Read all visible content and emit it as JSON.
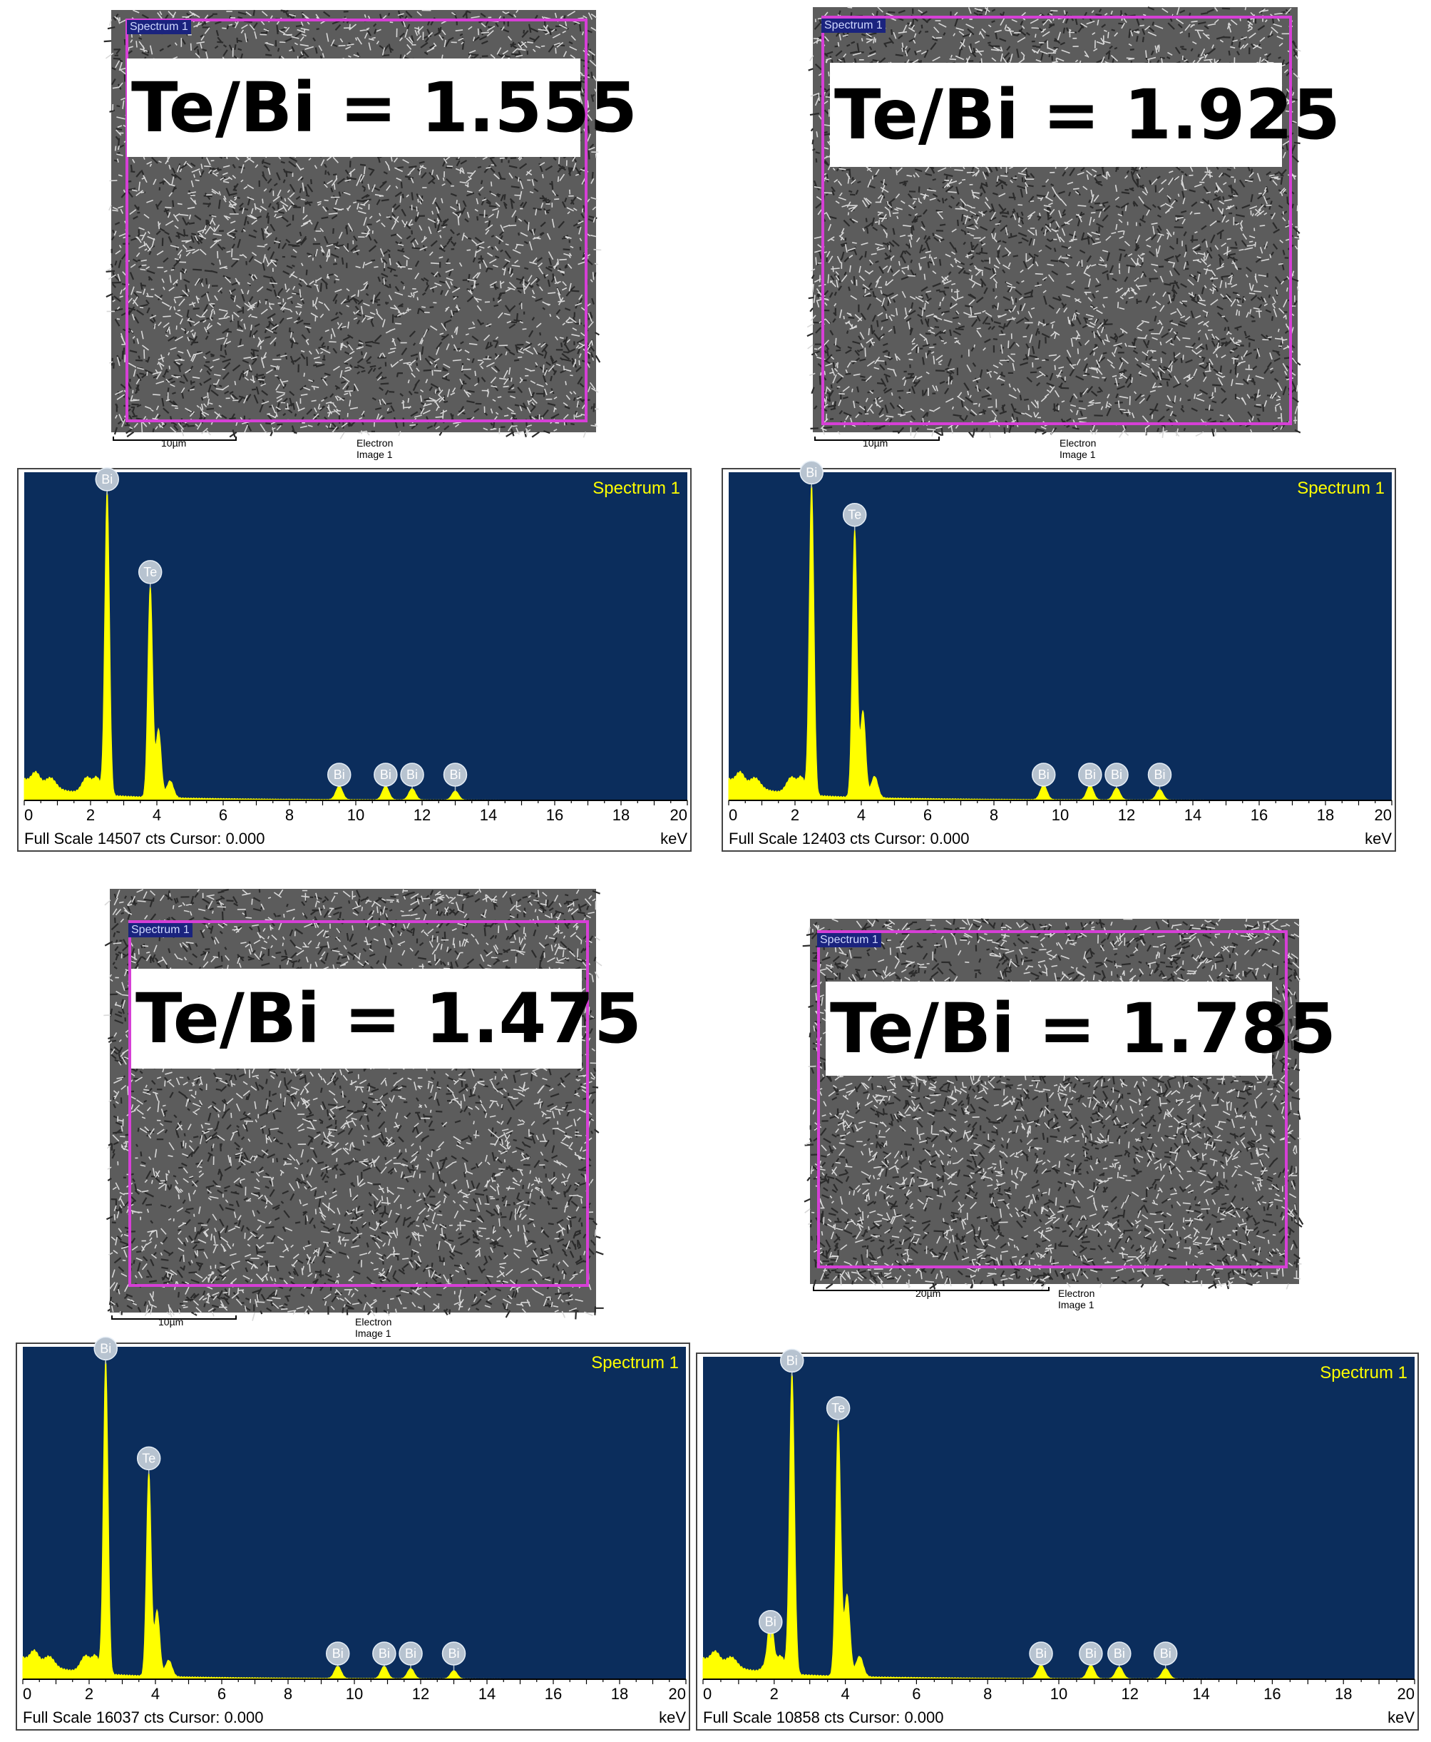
{
  "panels": [
    {
      "ratio_label": "Te/Bi = 1.555",
      "spectrum_tag": "Spectrum 1",
      "scale_label": "10µm",
      "image_label": "Electron Image 1",
      "footer_left": "Full Scale 14507 cts Cursor: 0.000",
      "footer_right": "keV"
    },
    {
      "ratio_label": "Te/Bi = 1.925",
      "spectrum_tag": "Spectrum 1",
      "scale_label": "10µm",
      "image_label": "Electron Image 1",
      "footer_left": "Full Scale 12403 cts Cursor: 0.000",
      "footer_right": "keV"
    },
    {
      "ratio_label": "Te/Bi = 1.475",
      "spectrum_tag": "Spectrum 1",
      "scale_label": "10µm",
      "image_label": "Electron Image 1",
      "footer_left": "Full Scale 16037 cts Cursor: 0.000",
      "footer_right": "keV"
    },
    {
      "ratio_label": "Te/Bi = 1.785",
      "spectrum_tag": "Spectrum 1",
      "scale_label": "20µm",
      "image_label": "Electron Image 1",
      "footer_left": "Full Scale 10858 cts Cursor: 0.000",
      "footer_right": "keV"
    }
  ],
  "chart_data": [
    {
      "type": "line",
      "title": "Spectrum 1",
      "xlabel": "keV",
      "xlim": [
        0,
        20
      ],
      "ylim": [
        0,
        14507
      ],
      "ticks": [
        0,
        2,
        4,
        6,
        8,
        10,
        12,
        14,
        16,
        18,
        20
      ],
      "peaks": [
        {
          "element": "Bi",
          "x": 2.5,
          "y": 13500
        },
        {
          "element": "Te",
          "x": 3.8,
          "y": 9400
        },
        {
          "element": "Bi",
          "x": 9.5,
          "y": 600
        },
        {
          "element": "Bi",
          "x": 10.9,
          "y": 600
        },
        {
          "element": "Bi",
          "x": 11.7,
          "y": 500
        },
        {
          "element": "Bi",
          "x": 13.0,
          "y": 400
        }
      ],
      "colors": {
        "background": "#0b2d5c",
        "trace": "#ffff00",
        "title": "#ffff00"
      }
    },
    {
      "type": "line",
      "title": "Spectrum 1",
      "xlabel": "keV",
      "xlim": [
        0,
        20
      ],
      "ylim": [
        0,
        12403
      ],
      "ticks": [
        0,
        2,
        4,
        6,
        8,
        10,
        12,
        14,
        16,
        18,
        20
      ],
      "peaks": [
        {
          "element": "Bi",
          "x": 2.5,
          "y": 11800
        },
        {
          "element": "Te",
          "x": 3.8,
          "y": 10200
        },
        {
          "element": "Bi",
          "x": 9.5,
          "y": 550
        },
        {
          "element": "Bi",
          "x": 10.9,
          "y": 550
        },
        {
          "element": "Bi",
          "x": 11.7,
          "y": 450
        },
        {
          "element": "Bi",
          "x": 13.0,
          "y": 400
        }
      ],
      "colors": {
        "background": "#0b2d5c",
        "trace": "#ffff00",
        "title": "#ffff00"
      }
    },
    {
      "type": "line",
      "title": "Spectrum 1",
      "xlabel": "keV",
      "xlim": [
        0,
        20
      ],
      "ylim": [
        0,
        16037
      ],
      "ticks": [
        0,
        2,
        4,
        6,
        8,
        10,
        12,
        14,
        16,
        18,
        20
      ],
      "peaks": [
        {
          "element": "Bi",
          "x": 2.5,
          "y": 15200
        },
        {
          "element": "Te",
          "x": 3.8,
          "y": 9900
        },
        {
          "element": "Bi",
          "x": 9.5,
          "y": 600
        },
        {
          "element": "Bi",
          "x": 10.9,
          "y": 600
        },
        {
          "element": "Bi",
          "x": 11.7,
          "y": 500
        },
        {
          "element": "Bi",
          "x": 13.0,
          "y": 400
        }
      ],
      "colors": {
        "background": "#0b2d5c",
        "trace": "#ffff00",
        "title": "#ffff00"
      }
    },
    {
      "type": "line",
      "title": "Spectrum 1",
      "xlabel": "keV",
      "xlim": [
        0,
        20
      ],
      "ylim": [
        0,
        10858
      ],
      "ticks": [
        0,
        2,
        4,
        6,
        8,
        10,
        12,
        14,
        16,
        18,
        20
      ],
      "peaks": [
        {
          "element": "Bi",
          "x": 1.9,
          "y": 1400
        },
        {
          "element": "Bi",
          "x": 2.5,
          "y": 10200
        },
        {
          "element": "Te",
          "x": 3.8,
          "y": 8600
        },
        {
          "element": "Bi",
          "x": 9.5,
          "y": 450
        },
        {
          "element": "Bi",
          "x": 10.9,
          "y": 450
        },
        {
          "element": "Bi",
          "x": 11.7,
          "y": 400
        },
        {
          "element": "Bi",
          "x": 13.0,
          "y": 350
        }
      ],
      "colors": {
        "background": "#0b2d5c",
        "trace": "#ffff00",
        "title": "#ffff00"
      }
    }
  ]
}
